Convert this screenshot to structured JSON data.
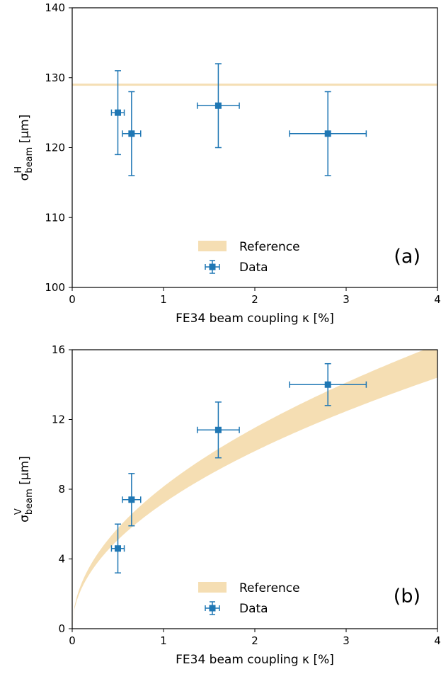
{
  "chart_data": [
    {
      "type": "scatter",
      "panel_tag": "(a)",
      "xlabel": "FE34 beam coupling κ [%]",
      "ylabel": {
        "base": "σ",
        "sup": "H",
        "sub": "beam",
        "unit": " [μm]"
      },
      "xlim": [
        0,
        4
      ],
      "ylim": [
        100,
        140
      ],
      "xticks": [
        "0",
        "1",
        "2",
        "3",
        "4"
      ],
      "yticks": [
        "100",
        "110",
        "120",
        "130",
        "140"
      ],
      "grid": false,
      "legend_position": "lower-center",
      "legend": {
        "reference": "Reference",
        "data": "Data"
      },
      "reference": {
        "kind": "constant",
        "value": 129,
        "band_halfwidth": 0.15,
        "color": "#f5deb3"
      },
      "series": [
        {
          "name": "Data",
          "color": "#1f77b4",
          "points": [
            {
              "x": 0.5,
              "y": 125,
              "xerr": 0.07,
              "yerr": 6
            },
            {
              "x": 0.65,
              "y": 122,
              "xerr": 0.1,
              "yerr": 6
            },
            {
              "x": 1.6,
              "y": 126,
              "xerr": 0.23,
              "yerr": 6
            },
            {
              "x": 2.8,
              "y": 122,
              "xerr": 0.42,
              "yerr": 6
            }
          ]
        }
      ]
    },
    {
      "type": "scatter",
      "panel_tag": "(b)",
      "xlabel": "FE34 beam coupling κ [%]",
      "ylabel": {
        "base": "σ",
        "sup": "V",
        "sub": "beam",
        "unit": " [μm]"
      },
      "xlim": [
        0,
        4
      ],
      "ylim": [
        0,
        16
      ],
      "xticks": [
        "0",
        "1",
        "2",
        "3",
        "4"
      ],
      "yticks": [
        "0",
        "4",
        "8",
        "12",
        "16"
      ],
      "grid": false,
      "legend_position": "lower-center",
      "legend": {
        "reference": "Reference",
        "data": "Data"
      },
      "reference": {
        "kind": "sqrt_band",
        "lower_coef": 7.2,
        "upper_coef": 8.15,
        "color": "#f5deb3"
      },
      "series": [
        {
          "name": "Data",
          "color": "#1f77b4",
          "points": [
            {
              "x": 0.5,
              "y": 4.6,
              "xerr": 0.07,
              "yerr": 1.4
            },
            {
              "x": 0.65,
              "y": 7.4,
              "xerr": 0.1,
              "yerr": 1.5
            },
            {
              "x": 1.6,
              "y": 11.4,
              "xerr": 0.23,
              "yerr": 1.6
            },
            {
              "x": 2.8,
              "y": 14.0,
              "xerr": 0.42,
              "yerr": 1.2
            }
          ]
        }
      ]
    }
  ]
}
